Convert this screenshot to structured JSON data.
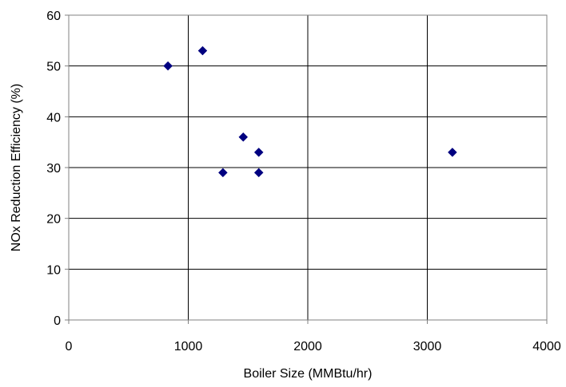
{
  "chart_data": {
    "type": "scatter",
    "title": "",
    "xlabel": "Boiler Size (MMBtu/hr)",
    "ylabel": "NOx Reduction Efficiency (%)",
    "xlim": [
      0,
      4000
    ],
    "ylim": [
      0,
      60
    ],
    "x_ticks": [
      0,
      1000,
      2000,
      3000,
      4000
    ],
    "y_ticks": [
      0,
      10,
      20,
      30,
      40,
      50,
      60
    ],
    "x_tick_labels": [
      "0",
      "1000",
      "2000",
      "3000",
      "4000"
    ],
    "y_tick_labels": [
      "0",
      "10",
      "20",
      "30",
      "40",
      "50",
      "60"
    ],
    "grid": true,
    "legend": "none",
    "marker": "diamond",
    "marker_color": "#000080",
    "points": [
      {
        "x": 830,
        "y": 50
      },
      {
        "x": 1120,
        "y": 53
      },
      {
        "x": 1290,
        "y": 29
      },
      {
        "x": 1460,
        "y": 36
      },
      {
        "x": 1590,
        "y": 33
      },
      {
        "x": 1590,
        "y": 29
      },
      {
        "x": 3210,
        "y": 33
      }
    ]
  }
}
